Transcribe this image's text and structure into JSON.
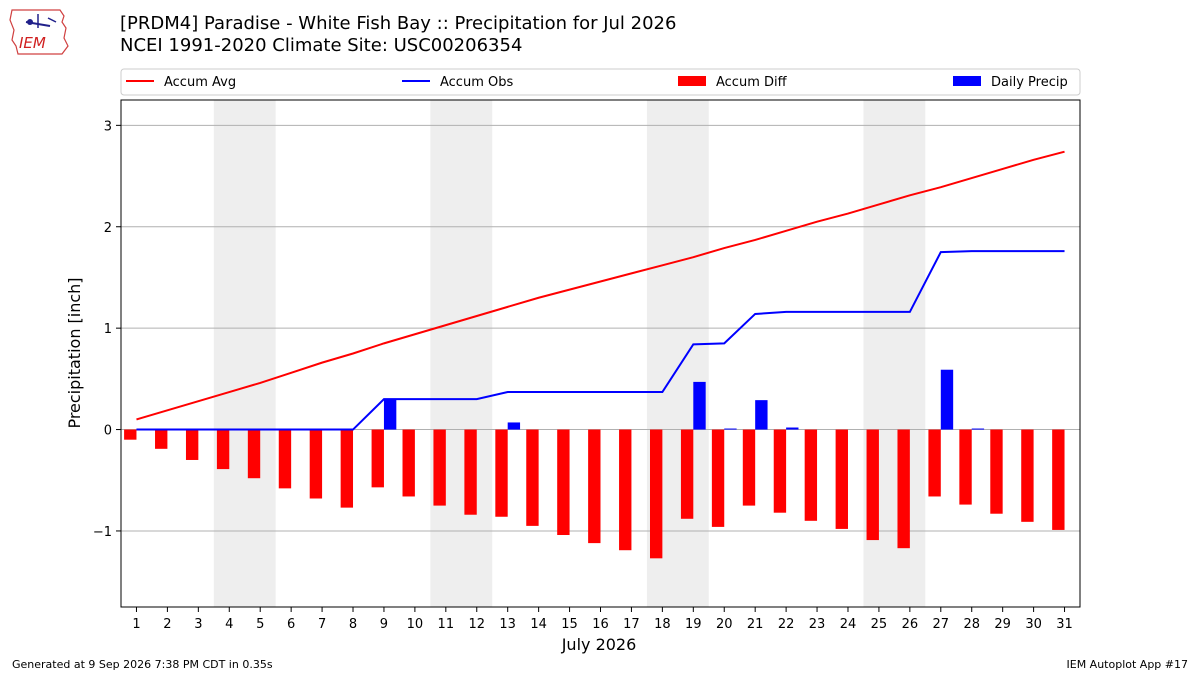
{
  "header": {
    "logo_text": "IEM",
    "title_line1": "[PRDM4] Paradise - White Fish Bay :: Precipitation for Jul 2026",
    "title_line2": "NCEI 1991-2020 Climate Site: USC00206354"
  },
  "footer": {
    "generated": "Generated at 9 Sep 2026 7:38 PM CDT in 0.35s",
    "app": "IEM Autoplot App #17"
  },
  "colors": {
    "accum_avg": "#ff0000",
    "accum_obs": "#0000ff",
    "accum_diff": "#ff0000",
    "daily_precip": "#0000ff",
    "weekend_shade": "#eeeeee",
    "grid": "#b0b0b0"
  },
  "chart_data": {
    "type": "bar",
    "xlabel": "July 2026",
    "ylabel": "Precipitation [inch]",
    "xlim": [
      0.5,
      31.5
    ],
    "ylim": [
      -1.75,
      3.25
    ],
    "yticks": [
      -1,
      0,
      1,
      2,
      3
    ],
    "ytick_labels": [
      "−1",
      "0",
      "1",
      "2",
      "3"
    ],
    "grid": "horizontal",
    "legend_placement": "top",
    "x": [
      1,
      2,
      3,
      4,
      5,
      6,
      7,
      8,
      9,
      10,
      11,
      12,
      13,
      14,
      15,
      16,
      17,
      18,
      19,
      20,
      21,
      22,
      23,
      24,
      25,
      26,
      27,
      28,
      29,
      30,
      31
    ],
    "x_labels": [
      "1",
      "2",
      "3",
      "4",
      "5",
      "6",
      "7",
      "8",
      "9",
      "10",
      "11",
      "12",
      "13",
      "14",
      "15",
      "16",
      "17",
      "18",
      "19",
      "20",
      "21",
      "22",
      "23",
      "24",
      "25",
      "26",
      "27",
      "28",
      "29",
      "30",
      "31"
    ],
    "shaded_days": [
      [
        4,
        5
      ],
      [
        11,
        12
      ],
      [
        18,
        19
      ],
      [
        25,
        26
      ]
    ],
    "series": [
      {
        "name": "Accum Avg",
        "kind": "line",
        "values": [
          0.1,
          0.19,
          0.28,
          0.37,
          0.46,
          0.56,
          0.66,
          0.75,
          0.85,
          0.94,
          1.03,
          1.12,
          1.21,
          1.3,
          1.38,
          1.46,
          1.54,
          1.62,
          1.7,
          1.79,
          1.87,
          1.96,
          2.05,
          2.13,
          2.22,
          2.31,
          2.39,
          2.48,
          2.57,
          2.66,
          2.74
        ]
      },
      {
        "name": "Accum Obs",
        "kind": "line",
        "values": [
          0,
          0,
          0,
          0,
          0,
          0,
          0,
          0,
          0.3,
          0.3,
          0.3,
          0.3,
          0.37,
          0.37,
          0.37,
          0.37,
          0.37,
          0.37,
          0.84,
          0.85,
          1.14,
          1.16,
          1.16,
          1.16,
          1.16,
          1.16,
          1.75,
          1.76,
          1.76,
          1.76,
          1.76
        ]
      },
      {
        "name": "Accum Diff",
        "kind": "bar",
        "values": [
          -0.1,
          -0.19,
          -0.3,
          -0.39,
          -0.48,
          -0.58,
          -0.68,
          -0.77,
          -0.57,
          -0.66,
          -0.75,
          -0.84,
          -0.86,
          -0.95,
          -1.04,
          -1.12,
          -1.19,
          -1.27,
          -0.88,
          -0.96,
          -0.75,
          -0.82,
          -0.9,
          -0.98,
          -1.09,
          -1.17,
          -0.66,
          -0.74,
          -0.83,
          -0.91,
          -0.99
        ]
      },
      {
        "name": "Daily Precip",
        "kind": "bar",
        "values": [
          0,
          0,
          0,
          0,
          0,
          0,
          0,
          0,
          0.3,
          0,
          0,
          0,
          0.07,
          0,
          0,
          0,
          0,
          0,
          0.47,
          0.01,
          0.29,
          0.02,
          0,
          0,
          0,
          0,
          0.59,
          0.01,
          0,
          0,
          0
        ]
      }
    ]
  }
}
